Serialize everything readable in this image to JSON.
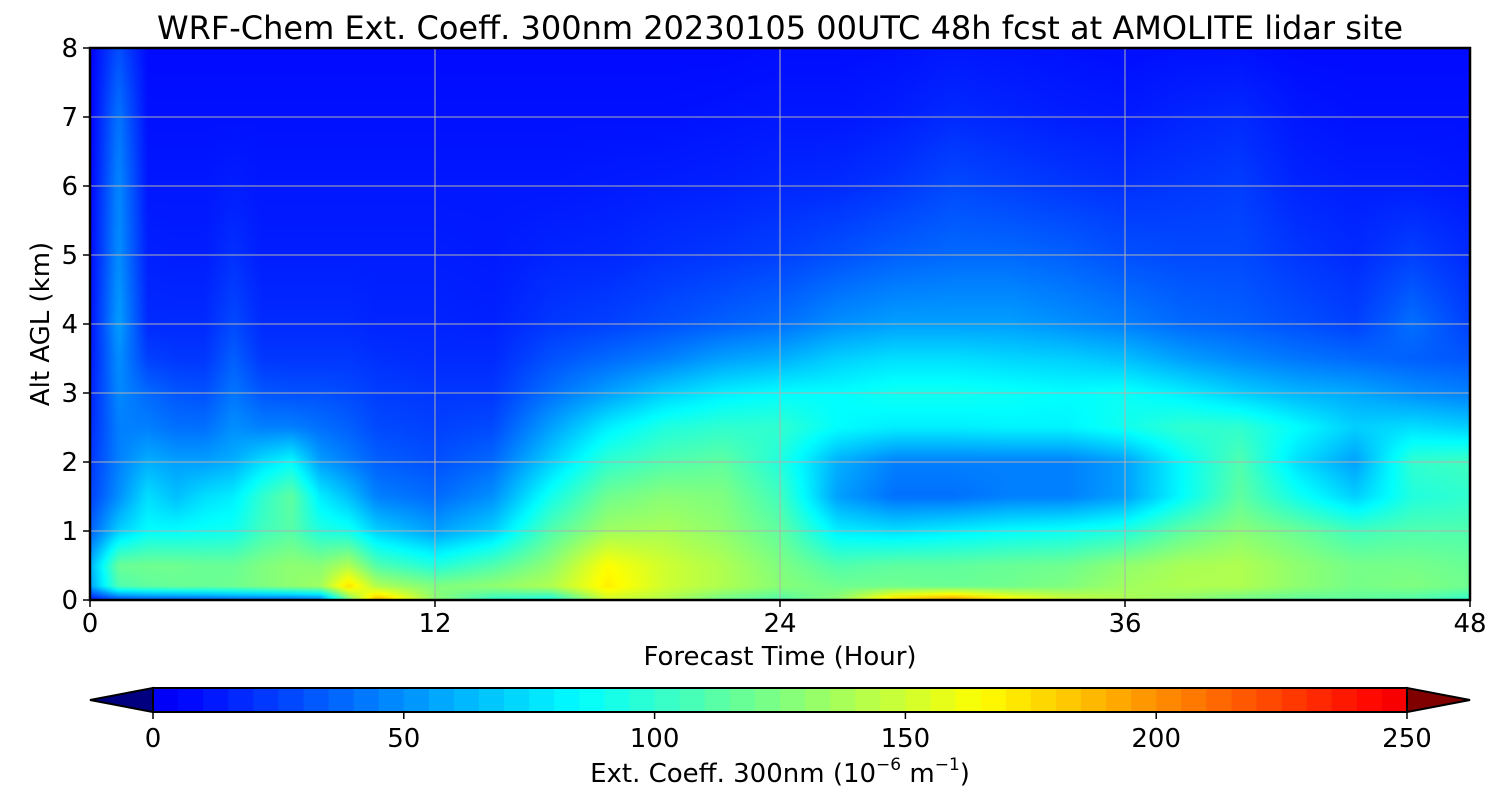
{
  "chart_data": {
    "type": "heatmap",
    "title": "WRF-Chem Ext. Coeff. 300nm  20230105 00UTC 48h fcst at AMOLITE lidar site",
    "xlabel": "Forecast Time (Hour)",
    "ylabel": "Alt AGL (km)",
    "xlim": [
      0,
      48
    ],
    "ylim": [
      0,
      8
    ],
    "x_ticks": [
      0,
      12,
      24,
      36,
      48
    ],
    "y_ticks": [
      0,
      1,
      2,
      3,
      4,
      5,
      6,
      7,
      8
    ],
    "grid": true,
    "colorbar": {
      "label_main": "Ext. Coeff. 300nm  (10",
      "label_exp1": "−6",
      "label_mid": " m",
      "label_exp2": "−1",
      "label_end": ")",
      "range": [
        0,
        250
      ],
      "ticks": [
        0,
        50,
        100,
        150,
        200,
        250
      ],
      "extend": "both",
      "colormap": "jet"
    },
    "field_hours": [
      0,
      1,
      2,
      3,
      4,
      5,
      6,
      7,
      8,
      9,
      10,
      12,
      14,
      16,
      18,
      20,
      22,
      24,
      26,
      28,
      30,
      32,
      34,
      36,
      38,
      40,
      42,
      44,
      46,
      48
    ],
    "field_altitudes_km": [
      0,
      0.2,
      0.5,
      1.0,
      1.5,
      2.0,
      2.5,
      3.0,
      3.5,
      4.0,
      5.0,
      6.0,
      7.0,
      8.0
    ],
    "field_values": [
      [
        10,
        55,
        60,
        35,
        25,
        22,
        18,
        15,
        12,
        10,
        8,
        6,
        5,
        5
      ],
      [
        25,
        110,
        118,
        70,
        50,
        45,
        45,
        48,
        50,
        55,
        50,
        48,
        42,
        30
      ],
      [
        30,
        115,
        120,
        85,
        75,
        60,
        45,
        38,
        25,
        18,
        15,
        12,
        10,
        8
      ],
      [
        30,
        118,
        120,
        85,
        65,
        55,
        40,
        32,
        22,
        18,
        14,
        12,
        10,
        8
      ],
      [
        32,
        118,
        118,
        88,
        75,
        55,
        40,
        30,
        22,
        18,
        14,
        12,
        10,
        8
      ],
      [
        35,
        120,
        118,
        90,
        80,
        60,
        50,
        42,
        35,
        28,
        20,
        14,
        10,
        8
      ],
      [
        35,
        125,
        125,
        105,
        100,
        75,
        45,
        32,
        22,
        18,
        14,
        12,
        10,
        8
      ],
      [
        35,
        130,
        130,
        112,
        115,
        85,
        45,
        30,
        22,
        18,
        14,
        12,
        10,
        8
      ],
      [
        40,
        135,
        128,
        95,
        80,
        55,
        40,
        30,
        22,
        18,
        14,
        12,
        10,
        8
      ],
      [
        120,
        175,
        140,
        90,
        65,
        45,
        35,
        28,
        22,
        18,
        14,
        12,
        10,
        8
      ],
      [
        190,
        140,
        110,
        70,
        45,
        35,
        28,
        24,
        20,
        16,
        14,
        12,
        10,
        8
      ],
      [
        130,
        125,
        95,
        55,
        38,
        30,
        25,
        22,
        18,
        16,
        14,
        12,
        10,
        8
      ],
      [
        100,
        130,
        110,
        70,
        50,
        38,
        28,
        22,
        18,
        15,
        13,
        12,
        10,
        8
      ],
      [
        90,
        140,
        130,
        110,
        90,
        70,
        55,
        40,
        30,
        22,
        16,
        12,
        10,
        8
      ],
      [
        150,
        170,
        165,
        135,
        120,
        100,
        80,
        55,
        38,
        25,
        17,
        13,
        10,
        8
      ],
      [
        140,
        150,
        150,
        138,
        128,
        110,
        95,
        70,
        45,
        30,
        20,
        14,
        10,
        8
      ],
      [
        120,
        140,
        140,
        130,
        125,
        115,
        100,
        80,
        55,
        35,
        22,
        15,
        11,
        8
      ],
      [
        110,
        128,
        125,
        115,
        105,
        95,
        100,
        85,
        60,
        40,
        25,
        17,
        12,
        9
      ],
      [
        130,
        120,
        110,
        80,
        55,
        60,
        85,
        85,
        70,
        50,
        30,
        18,
        12,
        9
      ],
      [
        180,
        120,
        115,
        75,
        40,
        45,
        80,
        90,
        75,
        55,
        35,
        22,
        14,
        10
      ],
      [
        200,
        118,
        115,
        80,
        40,
        45,
        80,
        90,
        75,
        55,
        38,
        28,
        18,
        12
      ],
      [
        170,
        120,
        118,
        85,
        45,
        45,
        82,
        88,
        72,
        55,
        38,
        25,
        16,
        11
      ],
      [
        150,
        125,
        120,
        88,
        45,
        45,
        82,
        85,
        70,
        50,
        35,
        22,
        14,
        10
      ],
      [
        140,
        135,
        130,
        95,
        55,
        55,
        90,
        88,
        65,
        45,
        30,
        20,
        13,
        9
      ],
      [
        130,
        140,
        138,
        115,
        85,
        85,
        100,
        80,
        55,
        38,
        28,
        22,
        16,
        10
      ],
      [
        120,
        140,
        140,
        128,
        115,
        110,
        100,
        70,
        48,
        35,
        28,
        24,
        18,
        10
      ],
      [
        115,
        130,
        130,
        118,
        90,
        75,
        85,
        62,
        42,
        30,
        22,
        16,
        12,
        8
      ],
      [
        115,
        122,
        122,
        105,
        70,
        55,
        70,
        58,
        38,
        25,
        18,
        14,
        10,
        8
      ],
      [
        110,
        125,
        122,
        110,
        95,
        100,
        75,
        50,
        35,
        40,
        25,
        14,
        10,
        8
      ],
      [
        100,
        120,
        118,
        110,
        100,
        105,
        70,
        45,
        32,
        25,
        18,
        12,
        10,
        8
      ]
    ]
  }
}
